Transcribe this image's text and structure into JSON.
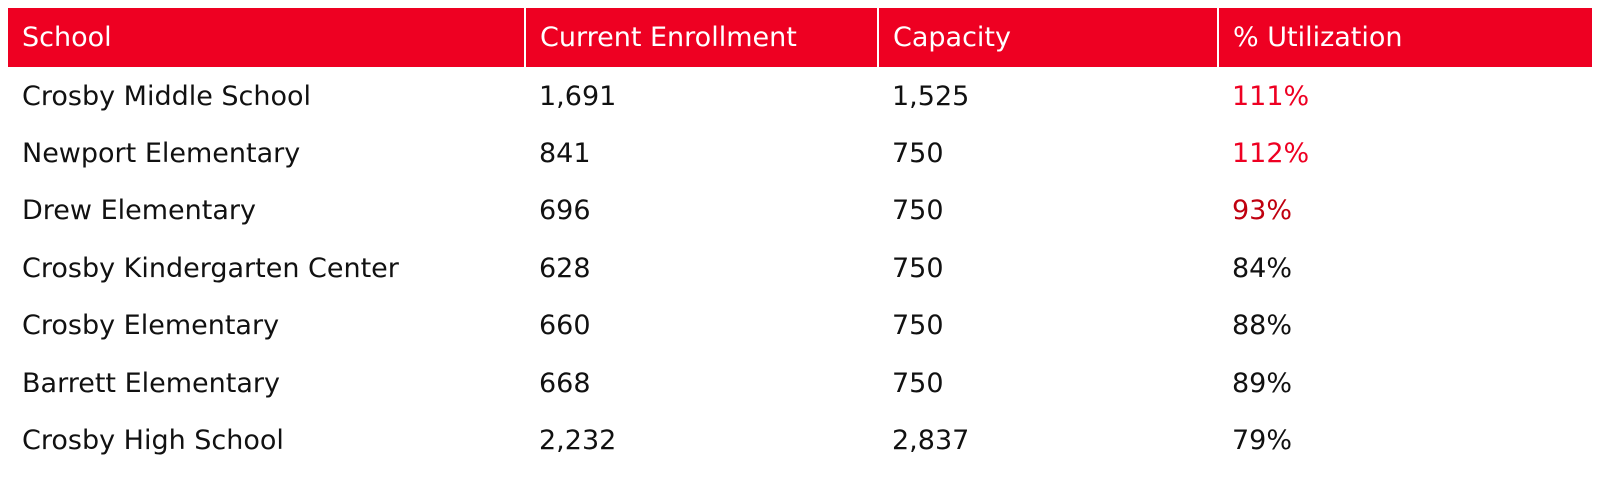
{
  "table": {
    "headers": [
      "School",
      "Current Enrollment",
      "Capacity",
      "% Utilization"
    ],
    "header_color": "#ee0022",
    "rows": [
      {
        "school": "Crosby Middle School",
        "enrollment": "1,691",
        "capacity": "1,525",
        "utilization": "111%",
        "utilization_color": "#ee0022"
      },
      {
        "school": "Newport Elementary",
        "enrollment": "841",
        "capacity": "750",
        "utilization": "112%",
        "utilization_color": "#ee0022"
      },
      {
        "school": "Drew Elementary",
        "enrollment": "696",
        "capacity": "750",
        "utilization": "93%",
        "utilization_color": "#c0000f"
      },
      {
        "school": "Crosby Kindergarten Center",
        "enrollment": "628",
        "capacity": "750",
        "utilization": "84%",
        "utilization_color": "#111111"
      },
      {
        "school": "Crosby Elementary",
        "enrollment": "660",
        "capacity": "750",
        "utilization": "88%",
        "utilization_color": "#111111"
      },
      {
        "school": "Barrett Elementary",
        "enrollment": "668",
        "capacity": "750",
        "utilization": "89%",
        "utilization_color": "#111111"
      },
      {
        "school": "Crosby High School",
        "enrollment": "2,232",
        "capacity": "2,837",
        "utilization": "79%",
        "utilization_color": "#111111"
      }
    ]
  }
}
